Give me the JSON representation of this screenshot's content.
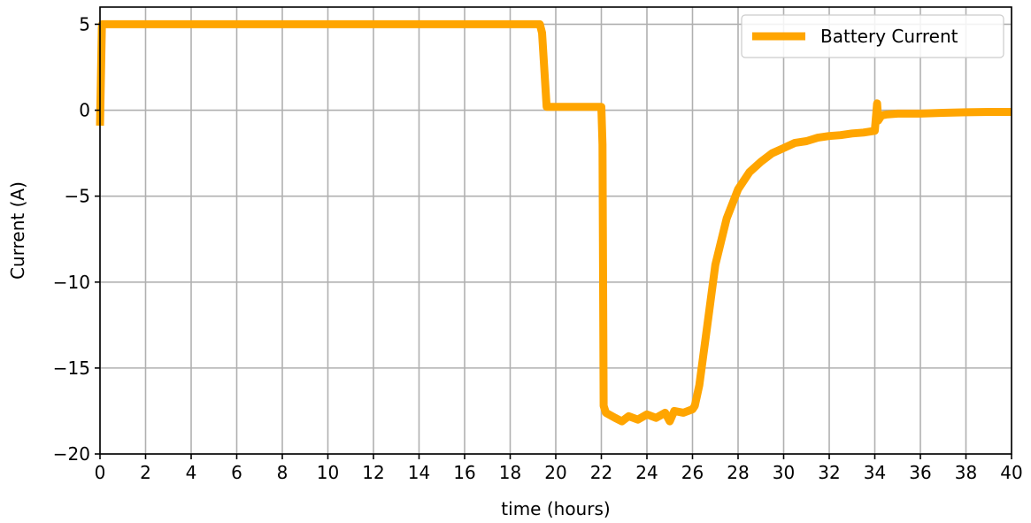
{
  "chart_data": {
    "type": "line",
    "xlabel": "time (hours)",
    "ylabel": "Current (A)",
    "xlim": [
      0,
      40
    ],
    "ylim": [
      -20,
      6
    ],
    "xticks": [
      0,
      2,
      4,
      6,
      8,
      10,
      12,
      14,
      16,
      18,
      20,
      22,
      24,
      26,
      28,
      30,
      32,
      34,
      36,
      38,
      40
    ],
    "yticks": [
      5,
      0,
      -5,
      -10,
      -15,
      -20
    ],
    "ytick_labels": [
      "5",
      "0",
      "−5",
      "−10",
      "−15",
      "−20"
    ],
    "grid": true,
    "legend_position": "top-right",
    "series": [
      {
        "name": "Battery Current",
        "color": "#ffa500",
        "x": [
          0,
          0.08,
          0.1,
          19.3,
          19.4,
          19.6,
          22.0,
          22.05,
          22.1,
          22.2,
          22.6,
          22.9,
          23.2,
          23.6,
          24.0,
          24.4,
          24.8,
          25.0,
          25.2,
          25.6,
          26.0,
          26.1,
          26.3,
          26.6,
          27.0,
          27.5,
          28.0,
          28.5,
          29.0,
          29.5,
          30.0,
          30.5,
          31.0,
          31.5,
          32.0,
          32.5,
          33.0,
          33.5,
          34.0,
          34.1,
          34.15,
          34.3,
          34.5,
          35.0,
          36.0,
          37.0,
          38.0,
          39.0,
          40.0
        ],
        "y": [
          -0.9,
          4.8,
          5.0,
          5.0,
          4.5,
          0.2,
          0.2,
          -2.0,
          -17.2,
          -17.6,
          -17.9,
          -18.1,
          -17.8,
          -18.0,
          -17.7,
          -17.9,
          -17.6,
          -18.1,
          -17.5,
          -17.6,
          -17.4,
          -17.2,
          -16.0,
          -13.0,
          -9.0,
          -6.3,
          -4.6,
          -3.6,
          -3.0,
          -2.5,
          -2.2,
          -1.9,
          -1.8,
          -1.6,
          -1.5,
          -1.45,
          -1.35,
          -1.3,
          -1.2,
          0.4,
          -0.6,
          -0.3,
          -0.25,
          -0.2,
          -0.2,
          -0.15,
          -0.12,
          -0.1,
          -0.1
        ]
      }
    ]
  }
}
